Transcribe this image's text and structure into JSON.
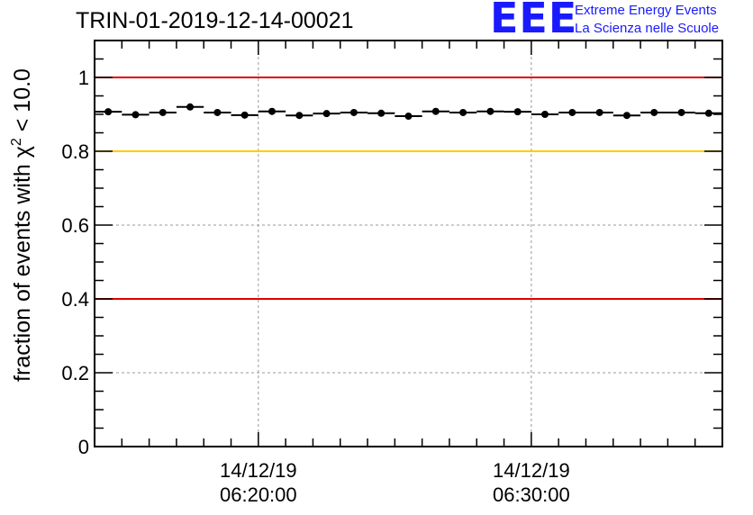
{
  "title": "TRIN-01-2019-12-14-00021",
  "logo": {
    "mark": "EEE",
    "line1": "Extreme Energy Events",
    "line2": "La Scienza nelle Scuole"
  },
  "colors": {
    "threshold_red": "#e00000",
    "threshold_yellow": "#ffcc00",
    "points": "#000000",
    "grid": "#999999"
  },
  "chart_data": {
    "type": "scatter",
    "title": "TRIN-01-2019-12-14-00021",
    "xlabel": "",
    "ylabel": "fraction of events with χ² < 10.0",
    "ylabel_parts": {
      "pre": "fraction of events with χ",
      "sup": "2",
      "post": " < 10.0"
    },
    "ylim": [
      0,
      1.1
    ],
    "yticks": [
      0,
      0.2,
      0.4,
      0.6,
      0.8,
      1
    ],
    "ytick_labels": [
      "0",
      "0.2",
      "0.4",
      "0.6",
      "0.8",
      "1"
    ],
    "xlim_minutes": [
      14,
      37
    ],
    "x_unit": "minutes after 06:00:00 on 14/12/19",
    "xticks": [
      {
        "x": 20,
        "date": "14/12/19",
        "time": "06:20:00"
      },
      {
        "x": 30,
        "date": "14/12/19",
        "time": "06:30:00"
      }
    ],
    "bin_width": 1,
    "x": [
      14.5,
      15.5,
      16.5,
      17.5,
      18.5,
      19.5,
      20.5,
      21.5,
      22.5,
      23.5,
      24.5,
      25.5,
      26.5,
      27.5,
      28.5,
      29.5,
      30.5,
      31.5,
      32.5,
      33.5,
      34.5,
      35.5,
      36.5
    ],
    "values": [
      0.907,
      0.899,
      0.905,
      0.92,
      0.905,
      0.898,
      0.908,
      0.897,
      0.902,
      0.905,
      0.903,
      0.895,
      0.908,
      0.905,
      0.908,
      0.907,
      0.9,
      0.905,
      0.905,
      0.897,
      0.905,
      0.905,
      0.903
    ],
    "threshold_lines": [
      {
        "y": 1.0,
        "color": "#e00000"
      },
      {
        "y": 0.8,
        "color": "#ffcc00"
      },
      {
        "y": 0.4,
        "color": "#e00000"
      }
    ],
    "grid": true
  }
}
